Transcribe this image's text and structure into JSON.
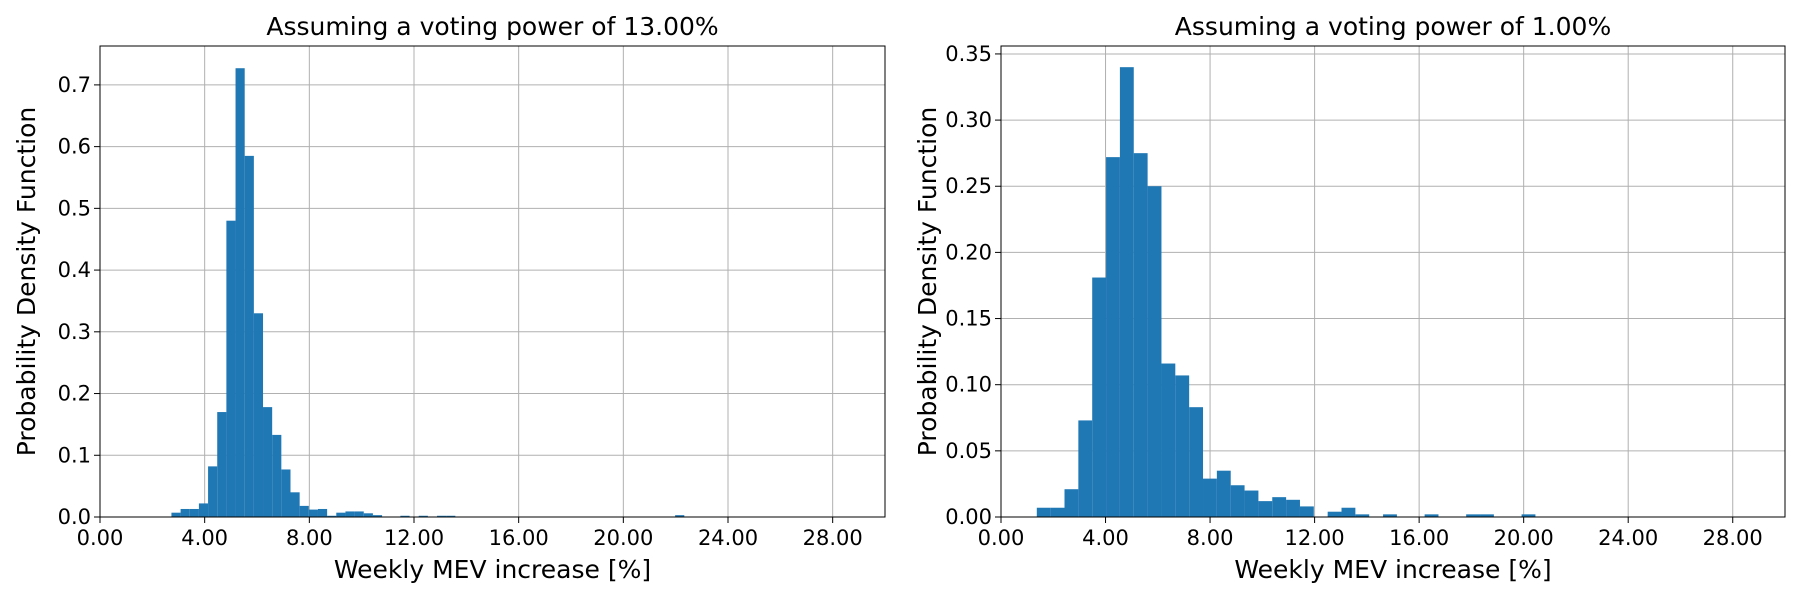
{
  "chart_data": [
    {
      "type": "histogram",
      "title": "Assuming a voting power of 13.00%",
      "x_label": "Weekly MEV increase [%]",
      "y_label": "Probability Density Function",
      "color": "#1f77b4",
      "grid": true,
      "bins": [
        2.73,
        3.08,
        3.43,
        3.78,
        4.13,
        4.48,
        4.83,
        5.18,
        5.53,
        5.88,
        6.23,
        6.58,
        6.93,
        7.28,
        7.63,
        7.98,
        8.33,
        8.68,
        9.03,
        9.38,
        9.73,
        10.08,
        10.43,
        10.78,
        11.13,
        11.48,
        11.83,
        12.18,
        12.53,
        12.88,
        13.23,
        13.58,
        13.93,
        14.28,
        14.63,
        14.98,
        15.33,
        15.68,
        16.03,
        16.38,
        16.73,
        17.08,
        17.43,
        17.78,
        18.13,
        18.48,
        18.83,
        19.18,
        19.53,
        19.88,
        20.23,
        20.58,
        20.93,
        21.28,
        21.63,
        21.98,
        22.33
      ],
      "values": [
        0.007,
        0.013,
        0.013,
        0.022,
        0.082,
        0.17,
        0.48,
        0.727,
        0.585,
        0.33,
        0.178,
        0.133,
        0.077,
        0.04,
        0.018,
        0.012,
        0.013,
        0.002,
        0.007,
        0.009,
        0.009,
        0.006,
        0.003,
        0,
        0,
        0.002,
        0,
        0.002,
        0,
        0.002,
        0.002,
        0,
        0,
        0,
        0,
        0,
        0,
        0,
        0,
        0,
        0,
        0,
        0,
        0,
        0,
        0,
        0,
        0,
        0,
        0,
        0,
        0,
        0,
        0,
        0,
        0.003
      ],
      "xlim": [
        0,
        30
      ],
      "xticks": [
        {
          "value": 0,
          "label": "0.00"
        },
        {
          "value": 4,
          "label": "4.00"
        },
        {
          "value": 8,
          "label": "8.00"
        },
        {
          "value": 12,
          "label": "12.00"
        },
        {
          "value": 16,
          "label": "16.00"
        },
        {
          "value": 20,
          "label": "20.00"
        },
        {
          "value": 24,
          "label": "24.00"
        },
        {
          "value": 28,
          "label": "28.00"
        }
      ],
      "ylim": [
        0,
        0.763
      ],
      "yticks": [
        {
          "value": 0,
          "label": "0.0"
        },
        0.1,
        0.2,
        0.3,
        0.4,
        0.5,
        0.6,
        0.7
      ]
    },
    {
      "type": "histogram",
      "title": "Assuming a voting power of 1.00%",
      "x_label": "Weekly MEV increase [%]",
      "y_label": "Probability Density Function",
      "color": "#1f77b4",
      "grid": true,
      "bins": [
        1.37,
        1.9,
        2.43,
        2.96,
        3.49,
        4.02,
        4.55,
        5.08,
        5.61,
        6.14,
        6.67,
        7.2,
        7.73,
        8.26,
        8.79,
        9.32,
        9.85,
        10.38,
        10.91,
        11.44,
        11.97,
        12.5,
        13.03,
        13.56,
        14.09,
        14.62,
        15.15,
        15.68,
        16.21,
        16.74,
        17.27,
        17.8,
        18.33,
        18.86,
        19.39,
        19.92,
        20.45
      ],
      "values": [
        0.007,
        0.007,
        0.021,
        0.073,
        0.181,
        0.272,
        0.34,
        0.275,
        0.25,
        0.116,
        0.107,
        0.083,
        0.029,
        0.035,
        0.024,
        0.02,
        0.012,
        0.015,
        0.013,
        0.008,
        0,
        0.004,
        0.007,
        0.002,
        0,
        0.002,
        0,
        0,
        0.002,
        0,
        0,
        0.002,
        0.002,
        0,
        0,
        0.002
      ],
      "xlim": [
        0,
        30
      ],
      "xticks": [
        {
          "value": 0,
          "label": "0.00"
        },
        {
          "value": 4,
          "label": "4.00"
        },
        {
          "value": 8,
          "label": "8.00"
        },
        {
          "value": 12,
          "label": "12.00"
        },
        {
          "value": 16,
          "label": "16.00"
        },
        {
          "value": 20,
          "label": "20.00"
        },
        {
          "value": 24,
          "label": "24.00"
        },
        {
          "value": 28,
          "label": "28.00"
        }
      ],
      "ylim": [
        0,
        0.356
      ],
      "yticks": [
        {
          "value": 0,
          "label": "0.00"
        },
        {
          "value": 0.05,
          "label": "0.05"
        },
        {
          "value": 0.1,
          "label": "0.10"
        },
        {
          "value": 0.15,
          "label": "0.15"
        },
        {
          "value": 0.2,
          "label": "0.20"
        },
        {
          "value": 0.25,
          "label": "0.25"
        },
        {
          "value": 0.3,
          "label": "0.30"
        },
        {
          "value": 0.35,
          "label": "0.35"
        }
      ]
    }
  ]
}
